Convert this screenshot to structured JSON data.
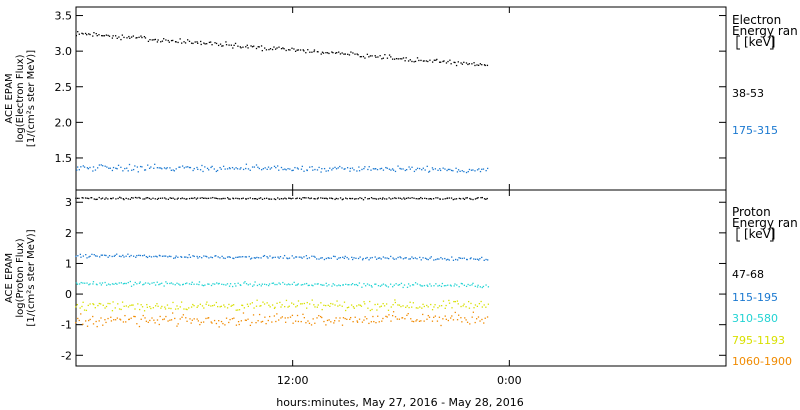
{
  "xaxis": {
    "title": "hours:minutes, May 27, 2016 - May 28, 2016",
    "ticks": [
      {
        "hour": 12,
        "label": "12:00"
      },
      {
        "hour": 24,
        "label": "0:00"
      }
    ],
    "range_hours": [
      0,
      36
    ],
    "data_end_hour": 22.8
  },
  "chart_data": [
    {
      "type": "scatter",
      "name": "electron",
      "ylabel": [
        "ACE EPAM",
        "log(Electron Flux)",
        "[1/(cm²s ster MeV)]"
      ],
      "ylim": [
        1.05,
        3.62
      ],
      "yticks": [
        "1.5",
        "2.0",
        "2.5",
        "3.0",
        "3.5"
      ],
      "legend": {
        "head": [
          "Electron",
          "Energy ran",
          "[keV]"
        ],
        "entries": [
          "38-53",
          "175-315"
        ]
      },
      "series": [
        {
          "label": "38-53",
          "color": "#000000",
          "start": 3.25,
          "end": 2.8,
          "noise": 0.05
        },
        {
          "label": "175-315",
          "color": "#1a78d0",
          "start": 1.37,
          "end": 1.33,
          "noise": 0.07
        }
      ]
    },
    {
      "type": "scatter",
      "name": "proton",
      "ylabel": [
        "ACE EPAM",
        "log(Proton Flux)",
        "[1/(cm²s ster MeV)]"
      ],
      "ylim": [
        -2.35,
        3.4
      ],
      "yticks": [
        "-2",
        "-1",
        "0",
        "1",
        "2",
        "3"
      ],
      "legend": {
        "head": [
          "Proton",
          "Energy ran",
          "[keV]"
        ],
        "entries": [
          "47-68",
          "115-195",
          "310-580",
          "795-1193",
          "1060-1900"
        ]
      },
      "series": [
        {
          "label": "47-68",
          "color": "#000000",
          "start": 3.13,
          "end": 3.12,
          "noise": 0.05
        },
        {
          "label": "115-195",
          "color": "#1a78d0",
          "start": 1.25,
          "end": 1.15,
          "noise": 0.08
        },
        {
          "label": "310-580",
          "color": "#22d3d3",
          "start": 0.35,
          "end": 0.28,
          "noise": 0.1
        },
        {
          "label": "795-1193",
          "color": "#d8e000",
          "start": -0.4,
          "end": -0.35,
          "noise": 0.22
        },
        {
          "label": "1060-1900",
          "color": "#f08a00",
          "start": -0.85,
          "end": -0.8,
          "noise": 0.28
        }
      ]
    }
  ]
}
